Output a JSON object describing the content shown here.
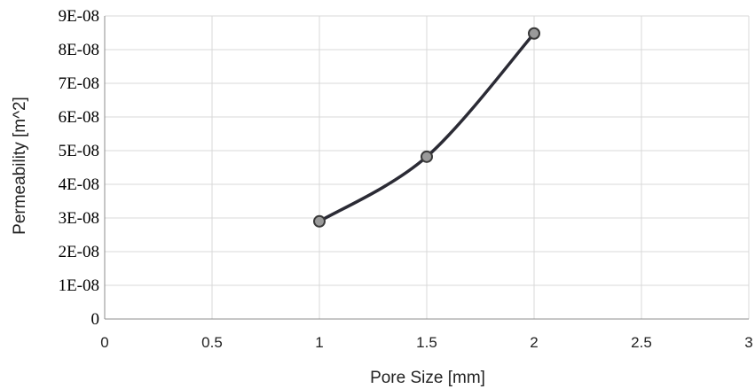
{
  "chart_data": {
    "type": "line",
    "title": "",
    "xlabel": "Pore Size [mm]",
    "ylabel": "Permeability [m^2]",
    "xlim": [
      0,
      3
    ],
    "ylim": [
      0,
      9e-08
    ],
    "x_ticks": [
      "0",
      "0.5",
      "1",
      "1.5",
      "2",
      "2.5",
      "3"
    ],
    "y_ticks": [
      "0",
      "1E-08",
      "2E-08",
      "3E-08",
      "4E-08",
      "5E-08",
      "6E-08",
      "7E-08",
      "8E-08",
      "9E-08"
    ],
    "grid": true,
    "series": [
      {
        "x": [
          1,
          1.5,
          2
        ],
        "y": [
          2.9e-08,
          4.82e-08,
          8.48e-08
        ],
        "line_color": "#2b2b35",
        "marker_color": "#9a9a9a",
        "marker_edge": "#3a3a3a"
      }
    ]
  }
}
